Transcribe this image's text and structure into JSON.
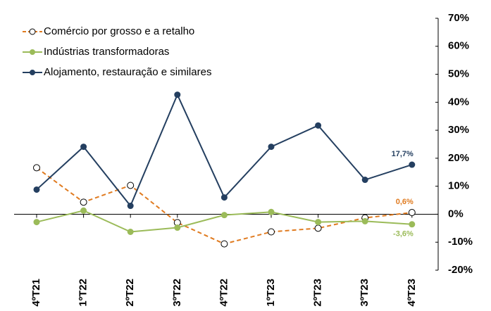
{
  "chart_data": {
    "type": "line",
    "categories": [
      "4ºT21",
      "1ºT22",
      "2ºT22",
      "3ºT22",
      "4ºT22",
      "1ºT23",
      "2ºT23",
      "3ºT23",
      "4ºT23"
    ],
    "series": [
      {
        "name": "Comércio por grosso e a retalho",
        "color": "#e07b20",
        "dashed": true,
        "marker": "open-circle",
        "values": [
          16.6,
          4.3,
          10.3,
          -3.0,
          -10.6,
          -6.3,
          -5.0,
          -1.3,
          0.6
        ],
        "value_labels": [
          null,
          null,
          null,
          null,
          null,
          null,
          null,
          null,
          "0,6%"
        ]
      },
      {
        "name": "Indústrias transformadoras",
        "color": "#9bbb59",
        "dashed": false,
        "marker": "dot",
        "values": [
          -2.8,
          1.3,
          -6.3,
          -4.8,
          -0.3,
          0.8,
          -2.8,
          -2.5,
          -3.6
        ],
        "value_labels": [
          null,
          null,
          null,
          null,
          null,
          null,
          null,
          null,
          "-3,6%"
        ]
      },
      {
        "name": "Alojamento, restauração e similares",
        "color": "#243f60",
        "dashed": false,
        "marker": "dot",
        "values": [
          8.8,
          24.1,
          3.0,
          42.7,
          6.0,
          24.1,
          31.7,
          12.3,
          17.7
        ],
        "value_labels": [
          null,
          null,
          null,
          null,
          null,
          null,
          null,
          null,
          "17,7%"
        ]
      }
    ],
    "ylim": [
      -20,
      70
    ],
    "yticks": [
      {
        "value": -20,
        "label": "-20%"
      },
      {
        "value": -10,
        "label": "-10%"
      },
      {
        "value": 0,
        "label": "0%"
      },
      {
        "value": 10,
        "label": "10%"
      },
      {
        "value": 20,
        "label": "20%"
      },
      {
        "value": 30,
        "label": "30%"
      },
      {
        "value": 40,
        "label": "40%"
      },
      {
        "value": 50,
        "label": "50%"
      },
      {
        "value": 60,
        "label": "60%"
      },
      {
        "value": 70,
        "label": "70%"
      }
    ],
    "y_axis_side": "right",
    "grid": false,
    "legend": "top-left"
  }
}
